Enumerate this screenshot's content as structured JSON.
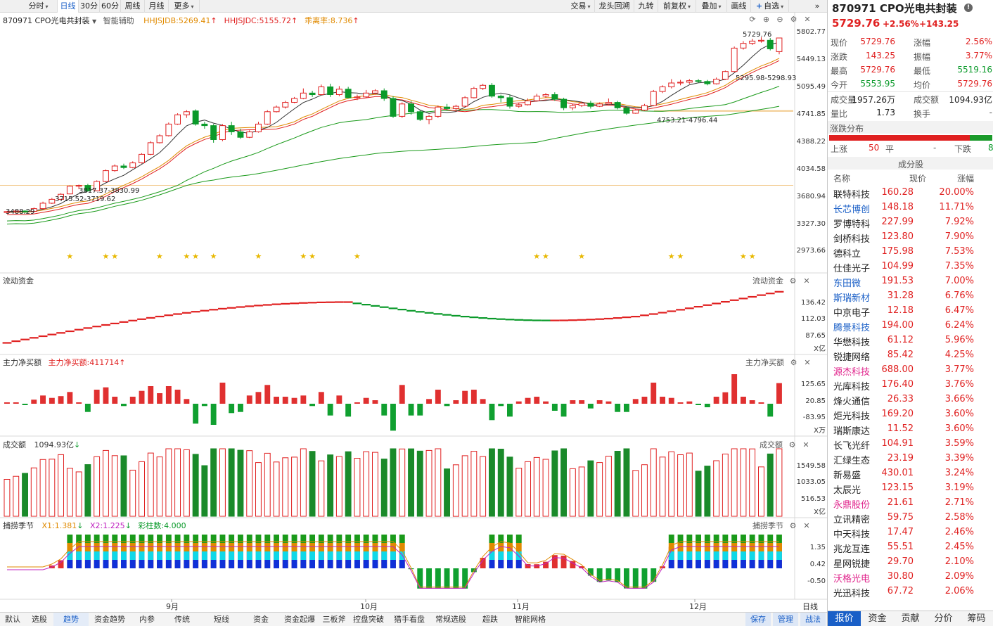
{
  "toolbar": {
    "left": [
      {
        "label": "分时",
        "caret": true
      },
      {
        "label": "日线",
        "active": true
      },
      {
        "label": "30分"
      },
      {
        "label": "60分"
      },
      {
        "label": "周线"
      },
      {
        "label": "月线"
      },
      {
        "label": "更多",
        "caret": true
      }
    ],
    "right": [
      {
        "label": "交易",
        "caret": true
      },
      {
        "label": "龙头回溯"
      },
      {
        "label": "九转"
      },
      {
        "label": "前复权",
        "caret": true
      },
      {
        "label": "叠加",
        "caret": true
      },
      {
        "label": "画线"
      },
      {
        "label": "自选",
        "caret": true
      }
    ]
  },
  "main_panel": {
    "name": "870971 CPO光电共封装",
    "tag": "智能辅助",
    "indicators": [
      {
        "label": "HHJSJDB:5269.41",
        "color": "#e08a00"
      },
      {
        "label": "HHJSJDC:5155.72",
        "color": "#e02020"
      },
      {
        "label": "乖离率:8.736",
        "color": "#e08a00"
      }
    ],
    "y_labels": [
      "5802.77",
      "5449.13",
      "5095.49",
      "4741.85",
      "4388.22",
      "4034.58",
      "3680.94",
      "3327.30",
      "2973.66"
    ],
    "annotations": [
      "5729.76",
      "5295.98-5298.93",
      "4753.21-4796.44",
      "3817.37-3830.99",
      "3715.52-3719.62",
      "3488.29"
    ]
  },
  "flow_panel": {
    "title": "流动资金",
    "right_title": "流动资金",
    "y_labels": [
      "136.42",
      "112.03",
      "87.65"
    ],
    "unit": "X亿"
  },
  "net_panel": {
    "title": "主力净买额",
    "value_label": "主力净买额:411714",
    "right_title": "主力净买额",
    "y_labels": [
      "125.65",
      "20.85",
      "-83.95"
    ],
    "unit": "X万"
  },
  "vol_panel": {
    "title": "成交额",
    "value_label": "1094.93亿",
    "right_title": "成交额",
    "y_labels": [
      "1549.58",
      "1033.05",
      "516.53"
    ],
    "unit": "X亿"
  },
  "season_panel": {
    "title": "捕捞季节",
    "x1": "X1:1.381",
    "x2": "X2:1.225",
    "cz": "彩柱数:4.000",
    "right_title": "捕捞季节",
    "y_labels": [
      "1.35",
      "0.42",
      "-0.50"
    ]
  },
  "x_axis": [
    "9月",
    "10月",
    "11月",
    "12月"
  ],
  "x_axis_right": "日线",
  "bottom_tabs": [
    "默认",
    "选股",
    "趋势",
    "资金趋势",
    "内参",
    "传统",
    "短线",
    "资金",
    "资金起爆",
    "三板斧",
    "控盘突破",
    "猎手看盘",
    "常规选股",
    "超跌",
    "智能网格"
  ],
  "bottom_right_tabs": [
    "保存",
    "管理",
    "战法"
  ],
  "quote": {
    "title": "870971 CPO光电共封装",
    "price": "5729.76",
    "change_pct": "+2.56%",
    "change": "+143.25",
    "rows": [
      [
        "现价",
        "5729.76",
        "涨幅",
        "2.56%"
      ],
      [
        "涨跌",
        "143.25",
        "振幅",
        "3.77%"
      ],
      [
        "最高",
        "5729.76",
        "最低",
        "5519.16"
      ],
      [
        "今开",
        "5553.95",
        "均价",
        "5729.76"
      ],
      [
        "成交量",
        "1957.26万",
        "成交额",
        "1094.93亿"
      ],
      [
        "量比",
        "1.73",
        "换手",
        "-"
      ]
    ]
  },
  "distribution": {
    "title": "涨跌分布",
    "up_label": "上涨",
    "up": "50",
    "flat_label": "平",
    "flat": "-",
    "down_label": "下跌",
    "down": "8"
  },
  "constituents": {
    "title": "成分股",
    "headers": [
      "名称",
      "现价",
      "涨幅"
    ],
    "rows": [
      {
        "name": "联特科技",
        "price": "160.28",
        "pct": "20.00%",
        "hl": false
      },
      {
        "name": "长芯博创",
        "price": "148.18",
        "pct": "11.71%",
        "hl": true
      },
      {
        "name": "罗博特科",
        "price": "227.99",
        "pct": "7.92%",
        "hl": false
      },
      {
        "name": "剑桥科技",
        "price": "123.80",
        "pct": "7.90%",
        "hl": false
      },
      {
        "name": "德科立",
        "price": "175.98",
        "pct": "7.53%",
        "hl": false
      },
      {
        "name": "仕佳光子",
        "price": "104.99",
        "pct": "7.35%",
        "hl": false
      },
      {
        "name": "东田微",
        "price": "191.53",
        "pct": "7.00%",
        "hl": true
      },
      {
        "name": "斯瑞新材",
        "price": "31.28",
        "pct": "6.76%",
        "hl": true
      },
      {
        "name": "中京电子",
        "price": "12.18",
        "pct": "6.47%",
        "hl": false
      },
      {
        "name": "腾景科技",
        "price": "194.00",
        "pct": "6.24%",
        "hl": true
      },
      {
        "name": "华懋科技",
        "price": "61.12",
        "pct": "5.96%",
        "hl": false
      },
      {
        "name": "锐捷网络",
        "price": "85.42",
        "pct": "4.25%",
        "hl": false
      },
      {
        "name": "源杰科技",
        "price": "688.00",
        "pct": "3.77%",
        "hl": "pink"
      },
      {
        "name": "光库科技",
        "price": "176.40",
        "pct": "3.76%",
        "hl": false
      },
      {
        "name": "烽火通信",
        "price": "26.33",
        "pct": "3.66%",
        "hl": false
      },
      {
        "name": "炬光科技",
        "price": "169.20",
        "pct": "3.60%",
        "hl": false
      },
      {
        "name": "瑞斯康达",
        "price": "11.52",
        "pct": "3.60%",
        "hl": false
      },
      {
        "name": "长飞光纤",
        "price": "104.91",
        "pct": "3.59%",
        "hl": false
      },
      {
        "name": "汇绿生态",
        "price": "23.19",
        "pct": "3.39%",
        "hl": false
      },
      {
        "name": "新易盛",
        "price": "430.01",
        "pct": "3.24%",
        "hl": false
      },
      {
        "name": "太辰光",
        "price": "123.15",
        "pct": "3.19%",
        "hl": false
      },
      {
        "name": "永鼎股份",
        "price": "21.61",
        "pct": "2.71%",
        "hl": "pink"
      },
      {
        "name": "立讯精密",
        "price": "59.75",
        "pct": "2.58%",
        "hl": false
      },
      {
        "name": "中天科技",
        "price": "17.47",
        "pct": "2.46%",
        "hl": false
      },
      {
        "name": "兆龙互连",
        "price": "55.51",
        "pct": "2.45%",
        "hl": false
      },
      {
        "name": "星网锐捷",
        "price": "29.70",
        "pct": "2.10%",
        "hl": false
      },
      {
        "name": "沃格光电",
        "price": "30.80",
        "pct": "2.09%",
        "hl": "pink"
      },
      {
        "name": "光迅科技",
        "price": "67.72",
        "pct": "2.06%",
        "hl": false
      }
    ]
  },
  "right_tabs": [
    "报价",
    "资金",
    "贡献",
    "分价",
    "筹码"
  ],
  "colors": {
    "up": "#e02020",
    "down": "#0a9a2a",
    "accent": "#1a5fc7"
  },
  "chart_data": {
    "type": "candlestick",
    "series": [
      {
        "open": 3480,
        "close": 3492,
        "high": 3500,
        "low": 3470
      },
      {
        "open": 3490,
        "close": 3500,
        "high": 3512,
        "low": 3480
      },
      {
        "open": 3500,
        "close": 3488,
        "high": 3510,
        "low": 3476
      },
      {
        "open": 3495,
        "close": 3530,
        "high": 3545,
        "low": 3490
      },
      {
        "open": 3530,
        "close": 3600,
        "high": 3620,
        "low": 3520
      },
      {
        "open": 3600,
        "close": 3650,
        "high": 3668,
        "low": 3590
      },
      {
        "open": 3650,
        "close": 3715,
        "high": 3730,
        "low": 3640
      },
      {
        "open": 3720,
        "close": 3820,
        "high": 3830,
        "low": 3715
      },
      {
        "open": 3820,
        "close": 3830,
        "high": 3840,
        "low": 3780
      },
      {
        "open": 3830,
        "close": 3760,
        "high": 3850,
        "low": 3750
      },
      {
        "open": 3760,
        "close": 3880,
        "high": 3895,
        "low": 3755
      },
      {
        "open": 3880,
        "close": 4020,
        "high": 4035,
        "low": 3870
      },
      {
        "open": 4020,
        "close": 4080,
        "high": 4100,
        "low": 4005
      },
      {
        "open": 4080,
        "close": 4060,
        "high": 4110,
        "low": 4040
      },
      {
        "open": 4060,
        "close": 4120,
        "high": 4140,
        "low": 4050
      },
      {
        "open": 4120,
        "close": 4230,
        "high": 4245,
        "low": 4110
      },
      {
        "open": 4230,
        "close": 4380,
        "high": 4400,
        "low": 4220
      },
      {
        "open": 4380,
        "close": 4470,
        "high": 4490,
        "low": 4370
      },
      {
        "open": 4470,
        "close": 4620,
        "high": 4640,
        "low": 4460
      },
      {
        "open": 4620,
        "close": 4740,
        "high": 4760,
        "low": 4610
      },
      {
        "open": 4740,
        "close": 4780,
        "high": 4800,
        "low": 4700
      },
      {
        "open": 4790,
        "close": 4620,
        "high": 4810,
        "low": 4600
      },
      {
        "open": 4620,
        "close": 4600,
        "high": 4650,
        "low": 4560
      },
      {
        "open": 4600,
        "close": 4420,
        "high": 4620,
        "low": 4380
      },
      {
        "open": 4420,
        "close": 4600,
        "high": 4620,
        "low": 4400
      },
      {
        "open": 4600,
        "close": 4520,
        "high": 4650,
        "low": 4480
      },
      {
        "open": 4520,
        "close": 4450,
        "high": 4560,
        "low": 4430
      },
      {
        "open": 4450,
        "close": 4520,
        "high": 4540,
        "low": 4440
      },
      {
        "open": 4520,
        "close": 4620,
        "high": 4650,
        "low": 4510
      },
      {
        "open": 4620,
        "close": 4780,
        "high": 4800,
        "low": 4610
      },
      {
        "open": 4780,
        "close": 4840,
        "high": 4860,
        "low": 4770
      },
      {
        "open": 4840,
        "close": 4900,
        "high": 4920,
        "low": 4820
      },
      {
        "open": 4900,
        "close": 4950,
        "high": 4970,
        "low": 4890
      },
      {
        "open": 4950,
        "close": 5020,
        "high": 5080,
        "low": 4940
      },
      {
        "open": 5020,
        "close": 5000,
        "high": 5050,
        "low": 4970
      },
      {
        "open": 5000,
        "close": 5100,
        "high": 5130,
        "low": 4990
      },
      {
        "open": 5100,
        "close": 5000,
        "high": 5140,
        "low": 4970
      },
      {
        "open": 5000,
        "close": 5070,
        "high": 5110,
        "low": 4980
      },
      {
        "open": 5070,
        "close": 4960,
        "high": 5100,
        "low": 4950
      },
      {
        "open": 4960,
        "close": 4970,
        "high": 5000,
        "low": 4930
      },
      {
        "open": 4970,
        "close": 5020,
        "high": 5060,
        "low": 4960
      },
      {
        "open": 5020,
        "close": 5050,
        "high": 5070,
        "low": 5000
      },
      {
        "open": 5050,
        "close": 4950,
        "high": 5080,
        "low": 4920
      },
      {
        "open": 4950,
        "close": 4720,
        "high": 4980,
        "low": 4700
      },
      {
        "open": 4720,
        "close": 4880,
        "high": 4900,
        "low": 4700
      },
      {
        "open": 4880,
        "close": 4780,
        "high": 4920,
        "low": 4740
      },
      {
        "open": 4780,
        "close": 4680,
        "high": 4800,
        "low": 4660
      },
      {
        "open": 4680,
        "close": 4720,
        "high": 4740,
        "low": 4620
      },
      {
        "open": 4720,
        "close": 4840,
        "high": 4860,
        "low": 4700
      },
      {
        "open": 4840,
        "close": 4820,
        "high": 4880,
        "low": 4800
      },
      {
        "open": 4820,
        "close": 4850,
        "high": 4870,
        "low": 4780
      },
      {
        "open": 4850,
        "close": 4960,
        "high": 4980,
        "low": 4840
      },
      {
        "open": 4960,
        "close": 5080,
        "high": 5100,
        "low": 4950
      },
      {
        "open": 5080,
        "close": 5120,
        "high": 5140,
        "low": 5060
      },
      {
        "open": 5120,
        "close": 4980,
        "high": 5150,
        "low": 4960
      },
      {
        "open": 4980,
        "close": 4960,
        "high": 5000,
        "low": 4900
      },
      {
        "open": 4960,
        "close": 4850,
        "high": 5000,
        "low": 4820
      },
      {
        "open": 4850,
        "close": 4870,
        "high": 4890,
        "low": 4830
      },
      {
        "open": 4870,
        "close": 4920,
        "high": 4950,
        "low": 4860
      },
      {
        "open": 4920,
        "close": 4980,
        "high": 5010,
        "low": 4910
      },
      {
        "open": 4980,
        "close": 5000,
        "high": 5020,
        "low": 4960
      },
      {
        "open": 5000,
        "close": 4940,
        "high": 5030,
        "low": 4920
      },
      {
        "open": 4940,
        "close": 4830,
        "high": 4960,
        "low": 4800
      },
      {
        "open": 4830,
        "close": 4860,
        "high": 4880,
        "low": 4800
      },
      {
        "open": 4860,
        "close": 4890,
        "high": 4910,
        "low": 4840
      },
      {
        "open": 4890,
        "close": 4850,
        "high": 4920,
        "low": 4820
      },
      {
        "open": 4850,
        "close": 4880,
        "high": 4900,
        "low": 4840
      },
      {
        "open": 4880,
        "close": 4900,
        "high": 4950,
        "low": 4860
      },
      {
        "open": 4900,
        "close": 4830,
        "high": 4920,
        "low": 4810
      },
      {
        "open": 4830,
        "close": 4760,
        "high": 4850,
        "low": 4740
      },
      {
        "open": 4760,
        "close": 4800,
        "high": 4820,
        "low": 4753
      },
      {
        "open": 4800,
        "close": 4860,
        "high": 4880,
        "low": 4790
      },
      {
        "open": 4860,
        "close": 5040,
        "high": 5060,
        "low": 4850
      },
      {
        "open": 5040,
        "close": 5100,
        "high": 5120,
        "low": 5020
      },
      {
        "open": 5100,
        "close": 5150,
        "high": 5200,
        "low": 5080
      },
      {
        "open": 5150,
        "close": 5160,
        "high": 5190,
        "low": 5120
      },
      {
        "open": 5160,
        "close": 5180,
        "high": 5200,
        "low": 5140
      },
      {
        "open": 5180,
        "close": 5170,
        "high": 5200,
        "low": 5150
      },
      {
        "open": 5170,
        "close": 5140,
        "high": 5190,
        "low": 5120
      },
      {
        "open": 5140,
        "close": 5200,
        "high": 5220,
        "low": 5130
      },
      {
        "open": 5200,
        "close": 5298,
        "high": 5310,
        "low": 5190
      },
      {
        "open": 5298,
        "close": 5600,
        "high": 5620,
        "low": 5290
      },
      {
        "open": 5600,
        "close": 5660,
        "high": 5690,
        "low": 5580
      },
      {
        "open": 5660,
        "close": 5690,
        "high": 5720,
        "low": 5640
      },
      {
        "open": 5690,
        "close": 5700,
        "high": 5740,
        "low": 5670
      },
      {
        "open": 5700,
        "close": 5590,
        "high": 5730,
        "low": 5570
      },
      {
        "open": 5554,
        "close": 5730,
        "high": 5730,
        "low": 5519
      }
    ]
  }
}
